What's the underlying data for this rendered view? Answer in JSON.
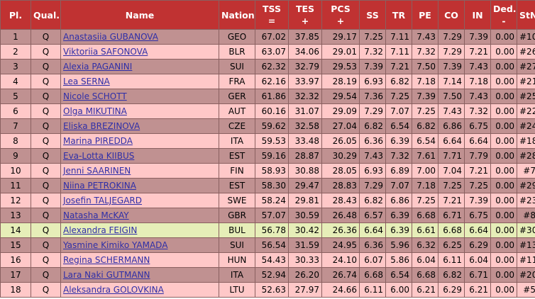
{
  "headers": {
    "pl": "Pl.",
    "qual": "Qual.",
    "name": "Name",
    "nation": "Nation",
    "tss": "TSS",
    "tss_sub": "=",
    "tes": "TES",
    "tes_sub": "+",
    "pcs": "PCS",
    "pcs_sub": "+",
    "ss": "SS",
    "tr": "TR",
    "pe": "PE",
    "co": "CO",
    "in": "IN",
    "ded": "Ded.",
    "ded_sub": "-",
    "stn": "StN."
  },
  "rows": [
    {
      "pl": "1",
      "qual": "Q",
      "name": "Anastasiia GUBANOVA",
      "nation": "GEO",
      "tss": "67.02",
      "tes": "37.85",
      "pcs": "29.17",
      "ss": "7.25",
      "tr": "7.11",
      "pe": "7.43",
      "co": "7.29",
      "in": "7.39",
      "ded": "0.00",
      "stn": "#10",
      "highlight": false
    },
    {
      "pl": "2",
      "qual": "Q",
      "name": "Viktoriia SAFONOVA",
      "nation": "BLR",
      "tss": "63.07",
      "tes": "34.06",
      "pcs": "29.01",
      "ss": "7.32",
      "tr": "7.11",
      "pe": "7.32",
      "co": "7.29",
      "in": "7.21",
      "ded": "0.00",
      "stn": "#26",
      "highlight": false
    },
    {
      "pl": "3",
      "qual": "Q",
      "name": "Alexia PAGANINI",
      "nation": "SUI",
      "tss": "62.32",
      "tes": "32.79",
      "pcs": "29.53",
      "ss": "7.39",
      "tr": "7.21",
      "pe": "7.50",
      "co": "7.39",
      "in": "7.43",
      "ded": "0.00",
      "stn": "#27",
      "highlight": false
    },
    {
      "pl": "4",
      "qual": "Q",
      "name": "Lea SERNA",
      "nation": "FRA",
      "tss": "62.16",
      "tes": "33.97",
      "pcs": "28.19",
      "ss": "6.93",
      "tr": "6.82",
      "pe": "7.18",
      "co": "7.14",
      "in": "7.18",
      "ded": "0.00",
      "stn": "#21",
      "highlight": false
    },
    {
      "pl": "5",
      "qual": "Q",
      "name": "Nicole SCHOTT",
      "nation": "GER",
      "tss": "61.86",
      "tes": "32.32",
      "pcs": "29.54",
      "ss": "7.36",
      "tr": "7.25",
      "pe": "7.39",
      "co": "7.50",
      "in": "7.43",
      "ded": "0.00",
      "stn": "#25",
      "highlight": false
    },
    {
      "pl": "6",
      "qual": "Q",
      "name": "Olga MIKUTINA",
      "nation": "AUT",
      "tss": "60.16",
      "tes": "31.07",
      "pcs": "29.09",
      "ss": "7.29",
      "tr": "7.07",
      "pe": "7.25",
      "co": "7.43",
      "in": "7.32",
      "ded": "0.00",
      "stn": "#22",
      "highlight": false
    },
    {
      "pl": "7",
      "qual": "Q",
      "name": "Eliska BREZINOVA",
      "nation": "CZE",
      "tss": "59.62",
      "tes": "32.58",
      "pcs": "27.04",
      "ss": "6.82",
      "tr": "6.54",
      "pe": "6.82",
      "co": "6.86",
      "in": "6.75",
      "ded": "0.00",
      "stn": "#24",
      "highlight": false
    },
    {
      "pl": "8",
      "qual": "Q",
      "name": "Marina PIREDDA",
      "nation": "ITA",
      "tss": "59.53",
      "tes": "33.48",
      "pcs": "26.05",
      "ss": "6.36",
      "tr": "6.39",
      "pe": "6.54",
      "co": "6.64",
      "in": "6.64",
      "ded": "0.00",
      "stn": "#18",
      "highlight": false
    },
    {
      "pl": "9",
      "qual": "Q",
      "name": "Eva-Lotta KIIBUS",
      "nation": "EST",
      "tss": "59.16",
      "tes": "28.87",
      "pcs": "30.29",
      "ss": "7.43",
      "tr": "7.32",
      "pe": "7.61",
      "co": "7.71",
      "in": "7.79",
      "ded": "0.00",
      "stn": "#28",
      "highlight": false
    },
    {
      "pl": "10",
      "qual": "Q",
      "name": "Jenni SAARINEN",
      "nation": "FIN",
      "tss": "58.93",
      "tes": "30.88",
      "pcs": "28.05",
      "ss": "6.93",
      "tr": "6.89",
      "pe": "7.00",
      "co": "7.04",
      "in": "7.21",
      "ded": "0.00",
      "stn": "#7",
      "highlight": false
    },
    {
      "pl": "11",
      "qual": "Q",
      "name": "Niina PETROKINA",
      "nation": "EST",
      "tss": "58.30",
      "tes": "29.47",
      "pcs": "28.83",
      "ss": "7.29",
      "tr": "7.07",
      "pe": "7.18",
      "co": "7.25",
      "in": "7.25",
      "ded": "0.00",
      "stn": "#29",
      "highlight": false
    },
    {
      "pl": "12",
      "qual": "Q",
      "name": "Josefin TALJEGARD",
      "nation": "SWE",
      "tss": "58.24",
      "tes": "29.81",
      "pcs": "28.43",
      "ss": "6.82",
      "tr": "6.86",
      "pe": "7.25",
      "co": "7.21",
      "in": "7.39",
      "ded": "0.00",
      "stn": "#23",
      "highlight": false
    },
    {
      "pl": "13",
      "qual": "Q",
      "name": "Natasha McKAY",
      "nation": "GBR",
      "tss": "57.07",
      "tes": "30.59",
      "pcs": "26.48",
      "ss": "6.57",
      "tr": "6.39",
      "pe": "6.68",
      "co": "6.71",
      "in": "6.75",
      "ded": "0.00",
      "stn": "#8",
      "highlight": false
    },
    {
      "pl": "14",
      "qual": "Q",
      "name": "Alexandra FEIGIN",
      "nation": "BUL",
      "tss": "56.78",
      "tes": "30.42",
      "pcs": "26.36",
      "ss": "6.64",
      "tr": "6.39",
      "pe": "6.61",
      "co": "6.68",
      "in": "6.64",
      "ded": "0.00",
      "stn": "#30",
      "highlight": true
    },
    {
      "pl": "15",
      "qual": "Q",
      "name": "Yasmine Kimiko YAMADA",
      "nation": "SUI",
      "tss": "56.54",
      "tes": "31.59",
      "pcs": "24.95",
      "ss": "6.36",
      "tr": "5.96",
      "pe": "6.32",
      "co": "6.25",
      "in": "6.29",
      "ded": "0.00",
      "stn": "#13",
      "highlight": false
    },
    {
      "pl": "16",
      "qual": "Q",
      "name": "Regina SCHERMANN",
      "nation": "HUN",
      "tss": "54.43",
      "tes": "30.33",
      "pcs": "24.10",
      "ss": "6.07",
      "tr": "5.86",
      "pe": "6.04",
      "co": "6.11",
      "in": "6.04",
      "ded": "0.00",
      "stn": "#11",
      "highlight": false
    },
    {
      "pl": "17",
      "qual": "Q",
      "name": "Lara Naki GUTMANN",
      "nation": "ITA",
      "tss": "52.94",
      "tes": "26.20",
      "pcs": "26.74",
      "ss": "6.68",
      "tr": "6.54",
      "pe": "6.68",
      "co": "6.82",
      "in": "6.71",
      "ded": "0.00",
      "stn": "#20",
      "highlight": false
    },
    {
      "pl": "18",
      "qual": "Q",
      "name": "Aleksandra GOLOVKINA",
      "nation": "LTU",
      "tss": "52.63",
      "tes": "27.97",
      "pcs": "24.66",
      "ss": "6.11",
      "tr": "6.00",
      "pe": "6.21",
      "co": "6.29",
      "in": "6.21",
      "ded": "0.00",
      "stn": "#5",
      "highlight": false
    }
  ],
  "colors": {
    "header_bg": "#c03232",
    "row_odd": "#c09191",
    "row_even": "#ffc8c8",
    "row_highlight": "#e6eeb8",
    "link": "#2f2fa8"
  }
}
